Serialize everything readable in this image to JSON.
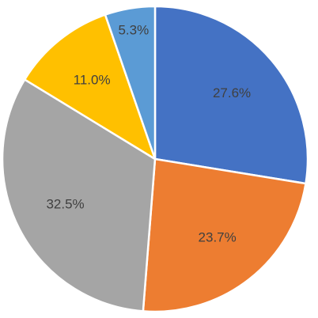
{
  "chart_data": {
    "type": "pie",
    "values": [
      27.6,
      23.7,
      32.5,
      11.0,
      5.3
    ],
    "value_labels": [
      "27.6%",
      "23.7%",
      "32.5%",
      "11.0%",
      "5.3%"
    ],
    "colors": [
      "#4472c4",
      "#ed7d31",
      "#a5a5a5",
      "#ffc000",
      "#5b9bd5"
    ],
    "start_angle": 0,
    "direction": "clockwise"
  }
}
